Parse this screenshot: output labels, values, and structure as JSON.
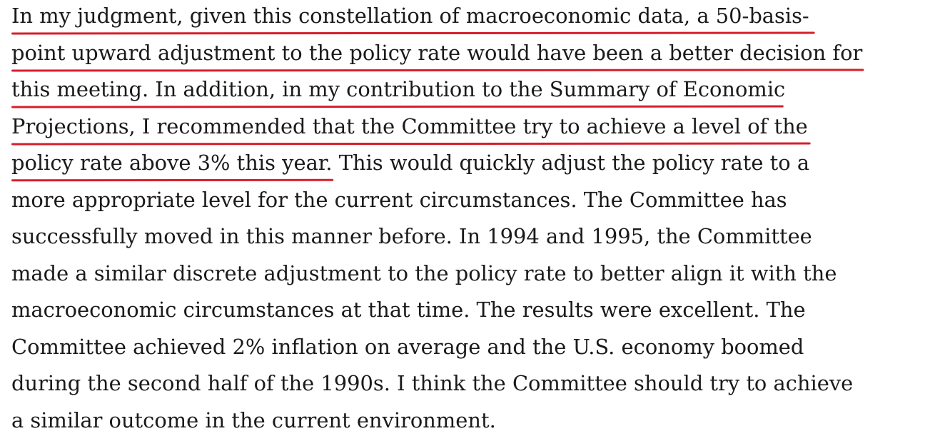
{
  "document": {
    "lines": [
      {
        "text": "In my judgment, given this constellation of macroeconomic data, a 50-basis-",
        "underlined": true
      },
      {
        "text": "point upward adjustment to the policy rate would have been a better decision for",
        "underlined": true
      },
      {
        "text": "this meeting. In addition, in my contribution to the Summary of Economic",
        "underlined": true
      },
      {
        "text": "Projections, I recommended that the Committee try to achieve a level of the",
        "underlined": true
      },
      {
        "text_underlined": "policy rate above 3% this year.",
        "text_rest": " This would quickly adjust the policy rate to a",
        "underlined": "partial"
      },
      {
        "text": "more appropriate level for the current circumstances. The Committee has",
        "underlined": false
      },
      {
        "text": "successfully moved in this manner before. In 1994 and 1995, the Committee",
        "underlined": false
      },
      {
        "text": "made a similar discrete adjustment to the policy rate to better align it with the",
        "underlined": false
      },
      {
        "text": "macroeconomic circumstances at that time. The results were excellent. The",
        "underlined": false
      },
      {
        "text": "Committee achieved 2% inflation on average and the U.S. economy boomed",
        "underlined": false
      },
      {
        "text": "during the second half of the 1990s. I think the Committee should try to achieve",
        "underlined": false
      },
      {
        "text": "a similar outcome in the current environment.",
        "underlined": false
      }
    ],
    "underline_color": "#d61f2b",
    "text_color": "#1a1a1a"
  }
}
